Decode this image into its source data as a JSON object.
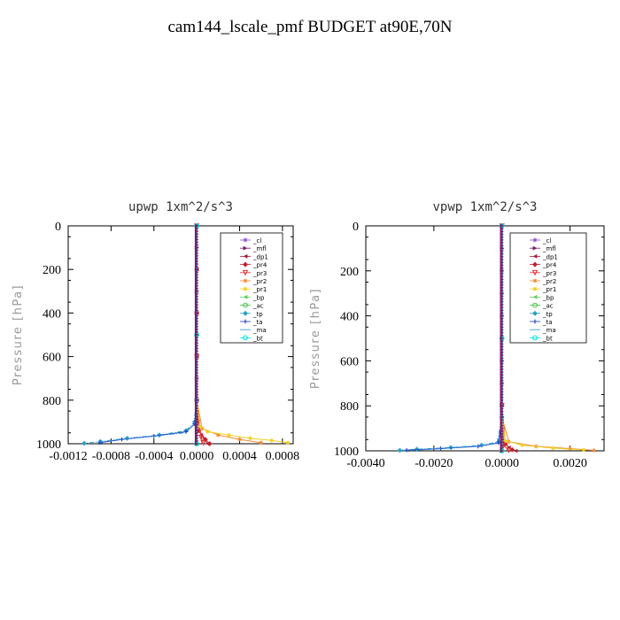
{
  "page_title": "cam144_lscale_pmf  BUDGET at90E,70N",
  "legend_entries": [
    {
      "label": "_cl",
      "color": "#8a4fd0",
      "marker": "star"
    },
    {
      "label": "_mfl",
      "color": "#7a1a6a",
      "marker": "tri-right"
    },
    {
      "label": "_dp1",
      "color": "#a01e3c",
      "marker": "tri-left"
    },
    {
      "label": "_pr4",
      "color": "#c0202a",
      "marker": "diamond"
    },
    {
      "label": "_pr3",
      "color": "#e03030",
      "marker": "tri-down"
    },
    {
      "label": "_pr2",
      "color": "#f08a30",
      "marker": "star"
    },
    {
      "label": "_pr1",
      "color": "#f0d020",
      "marker": "star"
    },
    {
      "label": "_bp",
      "color": "#60d060",
      "marker": "tri-left"
    },
    {
      "label": "_ac",
      "color": "#40c040",
      "marker": "circle"
    },
    {
      "label": "_tp",
      "color": "#2aa0c0",
      "marker": "diamond"
    },
    {
      "label": "_ta",
      "color": "#2040c0",
      "marker": "plus"
    },
    {
      "label": "_ma",
      "color": "#3090e0",
      "marker": "none"
    },
    {
      "label": "_bt",
      "color": "#00e0e0",
      "marker": "circle"
    }
  ],
  "chart_data": [
    {
      "type": "line",
      "title": "upwp  1xm^2/s^3",
      "xlabel": "",
      "ylabel": "Pressure [hPa]",
      "xlim": [
        -0.0012,
        0.0009
      ],
      "ylim": [
        1000,
        0
      ],
      "x_ticks": [
        -0.0012,
        -0.0008,
        -0.0004,
        0.0,
        0.0004,
        0.0008
      ],
      "x_tick_labels": [
        "-0.0012",
        "-0.0008",
        "-0.0004",
        "0.0000",
        "0.0004",
        "0.0008"
      ],
      "y_ticks": [
        0,
        200,
        400,
        600,
        800,
        1000
      ],
      "y_tick_labels": [
        "0",
        "200",
        "400",
        "600",
        "800",
        "1000"
      ],
      "legend_position": "top-right",
      "series": [
        {
          "name": "_cl",
          "x": [
            0,
            0,
            0,
            0,
            0,
            0,
            0,
            0,
            0,
            0
          ],
          "y": [
            0,
            100,
            200,
            300,
            400,
            500,
            600,
            700,
            800,
            1000
          ]
        },
        {
          "name": "_mfl",
          "x": [
            0,
            0,
            0,
            0,
            0,
            0,
            0,
            0,
            0,
            0
          ],
          "y": [
            0,
            100,
            200,
            300,
            400,
            500,
            600,
            700,
            800,
            1000
          ]
        },
        {
          "name": "_dp1",
          "x": [
            0,
            0,
            0,
            0,
            0,
            1e-05,
            4e-05,
            0.0001
          ],
          "y": [
            0,
            200,
            400,
            600,
            800,
            900,
            960,
            1000
          ]
        },
        {
          "name": "_pr4",
          "x": [
            0,
            0,
            0,
            2e-05,
            8e-05,
            0.00012
          ],
          "y": [
            0,
            400,
            800,
            940,
            980,
            1000
          ]
        },
        {
          "name": "_pr3",
          "x": [
            0,
            0,
            1e-05,
            4e-05,
            6e-05
          ],
          "y": [
            0,
            600,
            900,
            970,
            995
          ]
        },
        {
          "name": "_pr2",
          "x": [
            0,
            0,
            5e-05,
            0.0002,
            0.0004,
            0.0006
          ],
          "y": [
            0,
            800,
            930,
            960,
            980,
            995
          ]
        },
        {
          "name": "_pr1",
          "x": [
            0,
            0,
            3e-05,
            0.0001,
            0.0003,
            0.0005,
            0.0007,
            0.00085
          ],
          "y": [
            0,
            800,
            920,
            945,
            960,
            975,
            985,
            995
          ]
        },
        {
          "name": "_bp",
          "x": [
            0,
            0,
            0
          ],
          "y": [
            0,
            500,
            1000
          ]
        },
        {
          "name": "_ac",
          "x": [
            0,
            0,
            0
          ],
          "y": [
            0,
            500,
            1000
          ]
        },
        {
          "name": "_tp",
          "x": [
            0,
            0,
            -2e-05,
            -0.0001,
            -0.00035,
            -0.00065,
            -0.0009,
            -0.00105
          ],
          "y": [
            0,
            800,
            900,
            940,
            960,
            975,
            990,
            998
          ]
        },
        {
          "name": "_ta",
          "x": [
            0,
            0,
            -2e-05,
            -0.0001,
            -0.0004,
            -0.0007,
            -0.0009
          ],
          "y": [
            0,
            800,
            910,
            945,
            965,
            980,
            995
          ]
        },
        {
          "name": "_ma",
          "x": [
            0,
            0,
            -3e-05,
            -0.00012,
            -0.00045,
            -0.00075,
            -0.00095
          ],
          "y": [
            0,
            800,
            915,
            950,
            968,
            982,
            996
          ]
        },
        {
          "name": "_bt",
          "x": [
            0,
            0,
            0
          ],
          "y": [
            0,
            500,
            1000
          ]
        }
      ]
    },
    {
      "type": "line",
      "title": "vpwp  1xm^2/s^3",
      "xlabel": "",
      "ylabel": "Pressure [hPa]",
      "xlim": [
        -0.004,
        0.003
      ],
      "ylim": [
        1000,
        0
      ],
      "x_ticks": [
        -0.004,
        -0.002,
        0.0,
        0.002
      ],
      "x_tick_labels": [
        "-0.0040",
        "-0.0020",
        "0.0000",
        "0.0020"
      ],
      "y_ticks": [
        0,
        200,
        400,
        600,
        800,
        1000
      ],
      "y_tick_labels": [
        "0",
        "200",
        "400",
        "600",
        "800",
        "1000"
      ],
      "legend_position": "top-right",
      "series": [
        {
          "name": "_cl",
          "x": [
            0,
            0,
            0,
            0,
            0,
            0,
            0,
            0,
            0,
            0
          ],
          "y": [
            0,
            100,
            200,
            300,
            400,
            500,
            600,
            700,
            800,
            1000
          ]
        },
        {
          "name": "_mfl",
          "x": [
            0,
            0,
            0,
            0,
            0,
            0,
            0,
            0,
            0,
            0
          ],
          "y": [
            0,
            100,
            200,
            300,
            400,
            500,
            600,
            700,
            800,
            1000
          ]
        },
        {
          "name": "_dp1",
          "x": [
            0,
            0,
            0,
            5e-05,
            0.0002,
            0.0004
          ],
          "y": [
            0,
            500,
            900,
            960,
            985,
            1000
          ]
        },
        {
          "name": "_pr4",
          "x": [
            0,
            0,
            0.0001,
            0.0003
          ],
          "y": [
            0,
            800,
            970,
            995
          ]
        },
        {
          "name": "_pr3",
          "x": [
            0,
            0,
            5e-05,
            0.0002
          ],
          "y": [
            0,
            800,
            975,
            998
          ]
        },
        {
          "name": "_pr2",
          "x": [
            0,
            0,
            0.0002,
            0.001,
            0.002,
            0.0027
          ],
          "y": [
            0,
            850,
            960,
            980,
            990,
            998
          ]
        },
        {
          "name": "_pr1",
          "x": [
            0,
            0,
            0.0001,
            0.0006,
            0.0015,
            0.0024
          ],
          "y": [
            0,
            850,
            955,
            975,
            988,
            996
          ]
        },
        {
          "name": "_bp",
          "x": [
            0,
            0,
            0
          ],
          "y": [
            0,
            500,
            1000
          ]
        },
        {
          "name": "_ac",
          "x": [
            0,
            0,
            0
          ],
          "y": [
            0,
            500,
            1000
          ]
        },
        {
          "name": "_tp",
          "x": [
            0,
            0,
            -0.0001,
            -0.0006,
            -0.0015,
            -0.0025,
            -0.003
          ],
          "y": [
            0,
            850,
            960,
            975,
            985,
            993,
            998
          ]
        },
        {
          "name": "_ta",
          "x": [
            0,
            0,
            -0.0001,
            -0.0007,
            -0.0018,
            -0.0028
          ],
          "y": [
            0,
            850,
            965,
            980,
            990,
            997
          ]
        },
        {
          "name": "_ma",
          "x": [
            0,
            0,
            -0.00015,
            -0.0009,
            -0.002,
            -0.0029
          ],
          "y": [
            0,
            850,
            968,
            982,
            992,
            999
          ]
        },
        {
          "name": "_bt",
          "x": [
            0,
            0,
            0
          ],
          "y": [
            0,
            500,
            1000
          ]
        }
      ]
    }
  ]
}
